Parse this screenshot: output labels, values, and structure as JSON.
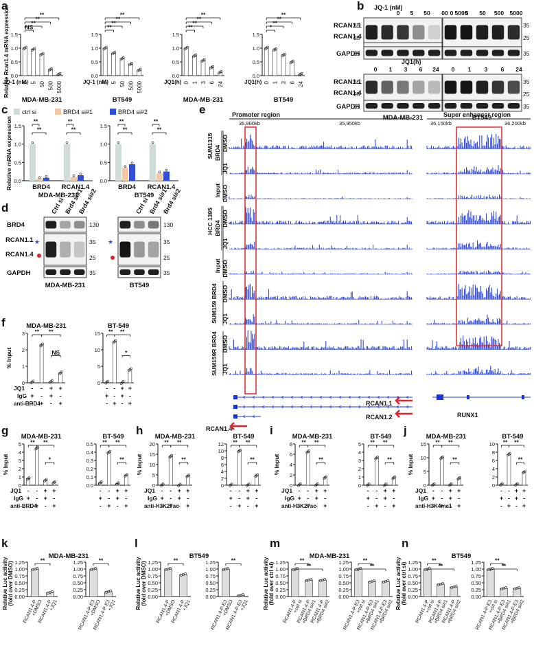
{
  "panel_letters": [
    "a",
    "b",
    "c",
    "d",
    "e",
    "f",
    "g",
    "h",
    "i",
    "j",
    "k",
    "l",
    "m",
    "n"
  ],
  "colors": {
    "ctrl": "#d0dcd8",
    "si1": "#f2c8a8",
    "si2": "#2e4fd6",
    "track": "#1a35d8",
    "highlight": "#e0242c",
    "bar_gray": "#dddddd"
  },
  "panel_a": {
    "ylabel": "Relative Rcan1.4 mRNA expression",
    "charts": [
      {
        "title": "MDA-MB-231",
        "factor": "JQ-1 (nM)",
        "categories": [
          "0",
          "5",
          "50",
          "500",
          "5000"
        ],
        "values": [
          1.0,
          0.96,
          0.78,
          0.22,
          0.05
        ],
        "yticks": [
          "0.0",
          "0.5",
          "1.0",
          "1.5"
        ],
        "sig": [
          "NS",
          "**",
          "**",
          "**"
        ]
      },
      {
        "title": "BT549",
        "factor": "JQ-1 (nM)",
        "categories": [
          "0",
          "5",
          "50",
          "500",
          "5000"
        ],
        "values": [
          1.0,
          0.82,
          0.62,
          0.42,
          0.2
        ],
        "yticks": [
          "0.0",
          "0.5",
          "1.0",
          "1.5"
        ],
        "sig": [
          "**",
          "**",
          "**",
          "**"
        ]
      },
      {
        "title": "MDA-MB-231",
        "factor": "JQ1(h)",
        "categories": [
          "0",
          "1",
          "3",
          "6",
          "24"
        ],
        "values": [
          1.0,
          0.72,
          0.55,
          0.3,
          0.12
        ],
        "yticks": [
          "0.0",
          "0.5",
          "1.0",
          "1.5"
        ],
        "sig": [
          "**",
          "**",
          "**",
          "**"
        ]
      },
      {
        "title": "BT549",
        "factor": "JQ1(h)",
        "categories": [
          "0",
          "1",
          "3",
          "6",
          "24"
        ],
        "values": [
          1.0,
          0.95,
          0.75,
          0.5,
          0.05
        ],
        "yticks": [
          "0.0",
          "0.5",
          "1.0",
          "1.5"
        ],
        "sig": [
          "*",
          "**",
          "**",
          "**"
        ]
      }
    ]
  },
  "panel_b": {
    "row1_factor": "JQ-1 (nM)",
    "row1_doses": [
      "0",
      "5",
      "50",
      "500",
      "5000"
    ],
    "row1_doses_b": [
      "0",
      "5",
      "50",
      "500",
      "5000"
    ],
    "row1_dose_short": "00",
    "row2_factor": "JQ1(h)",
    "row2_times": [
      "0",
      "1",
      "3",
      "6",
      "24"
    ],
    "bands": [
      "RCAN1.1",
      "RCAN1.4",
      "GAPDH"
    ],
    "mw": [
      "35",
      "25",
      "35"
    ],
    "cells": [
      "MDA-MB-231",
      "BT549"
    ]
  },
  "panel_c": {
    "legend": [
      "ctrl si",
      "BRD4 si#1",
      "BRD4 si#2"
    ],
    "ylabel": "Relative mRNA expression",
    "yticks": [
      "0.0",
      "0.5",
      "1.0",
      "1.5"
    ],
    "charts": [
      {
        "title": "MDA-MB-231",
        "categories": [
          "BRD4",
          "RCAN1.4"
        ],
        "series": [
          [
            1.0,
            1.0
          ],
          [
            0.05,
            0.1
          ],
          [
            0.08,
            0.15
          ]
        ]
      },
      {
        "title": "BT549",
        "categories": [
          "BRD4",
          "RCAN1.4"
        ],
        "series": [
          [
            1.0,
            1.0
          ],
          [
            0.35,
            0.2
          ],
          [
            0.45,
            0.25
          ]
        ]
      }
    ],
    "sig": "**"
  },
  "panel_d": {
    "lanes": [
      "Ctrl si",
      "Brd4 si#1",
      "Brd4 si#2"
    ],
    "bands": [
      "BRD4",
      "RCAN1.1",
      "RCAN1.4",
      "GAPDH"
    ],
    "mw": [
      "130",
      "35",
      "25",
      "35"
    ],
    "cells": [
      "MDA-MB-231",
      "BT549"
    ]
  },
  "panel_e": {
    "promoter": "Promoter region",
    "enhancer": "Super enhancer region",
    "coords_left": [
      "35,900kb",
      "35,950kb"
    ],
    "coords_right": [
      "36,150kb",
      "36,200kb"
    ],
    "groups": [
      {
        "cell": "SUM1315",
        "sub": [
          "BRD4",
          "Input"
        ],
        "tracks": [
          "DMSO",
          "JQ1",
          "DMSO"
        ]
      },
      {
        "cell": "HCC 1395",
        "sub": [
          "BRD4",
          "Input"
        ],
        "tracks": [
          "DMSO",
          "JQ1",
          "DMSO"
        ]
      },
      {
        "cell": "SUM159 BRD4",
        "sub": [],
        "tracks": [
          "DMSO",
          "JQ1"
        ]
      },
      {
        "cell": "SUM159R BRD4",
        "sub": [],
        "tracks": [
          "DMSO",
          "JQ1"
        ]
      }
    ],
    "genes": [
      "RCAN1.1",
      "RCAN1.2",
      "RCAN1.4",
      "RUNX1"
    ]
  },
  "chip": {
    "ylabel": "% Input",
    "row_jq1": "JQ1",
    "row_igg": "IgG",
    "jq1_marks": [
      "-",
      "-",
      "+",
      "+"
    ],
    "igg_marks": [
      "+",
      "-",
      "+",
      "-"
    ],
    "panels": [
      {
        "id": "f",
        "ab": "anti-BRD4",
        "cells": [
          {
            "title": "MDA-MB-231",
            "yticks": [
              "0",
              "1",
              "2",
              "3"
            ],
            "values": [
              0.05,
              2.3,
              0.08,
              0.6
            ],
            "sig": [
              "**",
              "**",
              "NS"
            ]
          },
          {
            "title": "BT-549",
            "yticks": [
              "0",
              "5",
              "10",
              "15"
            ],
            "values": [
              0.2,
              12.5,
              0.1,
              4.0
            ],
            "sig": [
              "**",
              "**",
              "*"
            ]
          }
        ]
      },
      {
        "id": "g",
        "ab": "anti-BRD4",
        "cells": [
          {
            "title": "MDA-MB-231",
            "yticks": [
              "0",
              "1",
              "2",
              "3",
              "4",
              "5"
            ],
            "values": [
              0.8,
              4.5,
              0.6,
              0.35
            ],
            "sig": [
              "**",
              "**",
              "*"
            ]
          },
          {
            "title": "BT-549",
            "yticks": [
              "0.0",
              "0.1",
              "0.2",
              "0.3",
              "0.4",
              "0.5"
            ],
            "values": [
              0.03,
              0.4,
              0.02,
              0.12
            ],
            "sig": [
              "**",
              "**",
              "**"
            ]
          }
        ]
      },
      {
        "id": "h",
        "ab": "anti-H3K27ac",
        "cells": [
          {
            "title": "MDA-MB-231",
            "yticks": [
              "0",
              "5",
              "10",
              "15",
              "20"
            ],
            "values": [
              0.2,
              14.0,
              0.1,
              4.5
            ],
            "sig": [
              "**",
              "**",
              "**"
            ]
          },
          {
            "title": "BT-549",
            "yticks": [
              "0",
              "2",
              "4",
              "6",
              "8",
              "10",
              "12"
            ],
            "values": [
              0.1,
              10.0,
              0.1,
              2.8
            ],
            "sig": [
              "**",
              "**",
              "**"
            ]
          }
        ]
      },
      {
        "id": "i",
        "ab": "anti-H3K27ac",
        "cells": [
          {
            "title": "MDA-MB-231",
            "yticks": [
              "0",
              "2",
              "4",
              "6",
              "8"
            ],
            "values": [
              0.1,
              6.5,
              0.1,
              1.5
            ],
            "sig": [
              "**",
              "**",
              "**"
            ]
          },
          {
            "title": "BT-549",
            "yticks": [
              "0",
              "1",
              "2",
              "3",
              "4",
              "5"
            ],
            "values": [
              0.05,
              3.3,
              0.05,
              0.9
            ],
            "sig": [
              "**",
              "**",
              "**"
            ]
          }
        ]
      },
      {
        "id": "j",
        "ab": "anti-H3K4me1",
        "cells": [
          {
            "title": "MDA-MB-231",
            "yticks": [
              "0",
              "5",
              "10",
              "15"
            ],
            "values": [
              0.2,
              10.0,
              0.2,
              2.5
            ],
            "sig": [
              "**",
              "**",
              "**"
            ]
          },
          {
            "title": "BT-549",
            "yticks": [
              "0",
              "2",
              "4",
              "6",
              "8",
              "10"
            ],
            "values": [
              0.2,
              7.5,
              0.2,
              3.2
            ],
            "sig": [
              "**",
              "**",
              "**"
            ]
          }
        ]
      }
    ]
  },
  "luc": {
    "ylabel": "Relative Luc activity",
    "panels": [
      {
        "id": "k",
        "title": "MDA-MB-231",
        "sub": "(fold over DMSO)",
        "groups": [
          {
            "labels": [
              "RCAN1.4-P\n+DMSO",
              "RCAN1.4-P\n+JQ1"
            ],
            "values": [
              1.0,
              0.15
            ]
          },
          {
            "labels": [
              "RCAN1.4-P-E3\n+DMSO",
              "RCAN1.4-P-E3\n+JQ1"
            ],
            "values": [
              1.0,
              0.18
            ]
          }
        ]
      },
      {
        "id": "l",
        "title": "BT549",
        "sub": "(fold over DMSO)",
        "groups": [
          {
            "labels": [
              "RCAN1.4-P\n+DMSO",
              "RCAN1.4-P\n+JQ1"
            ],
            "values": [
              1.0,
              0.8
            ]
          },
          {
            "labels": [
              "RCAN1.4-P-E3\n+DMSO",
              "RCAN1.4-P-E3\n+JQ1"
            ],
            "values": [
              1.0,
              0.05
            ]
          }
        ]
      },
      {
        "id": "m",
        "title": "MDA-MB-231",
        "sub": "(fold over ctrl si)",
        "groups": [
          {
            "labels": [
              "RCAN1.4-P\n+ctrl si",
              "RCAN1.4-P\n+BRD4 si#1",
              "RCAN1.4-P\n+BRD4 si#2"
            ],
            "values": [
              1.0,
              0.6,
              0.6
            ]
          },
          {
            "labels": [
              "RCAN1.4-P-E3\n+ctrl si",
              "RCAN1.4-P-E3\n+BRD4 si#1",
              "RCAN1.4-P-E3\n+BRD4 si#2"
            ],
            "values": [
              1.0,
              0.55,
              0.55
            ]
          }
        ]
      },
      {
        "id": "n",
        "title": "BT549",
        "sub": "(fold over ctrl si)",
        "groups": [
          {
            "labels": [
              "RCAN1.4-P\n+ctrl si",
              "RCAN1.4-P\n+BRD4 si#1",
              "RCAN1.4-P\n+BRD4 si#2"
            ],
            "values": [
              1.0,
              0.45,
              0.35
            ]
          },
          {
            "labels": [
              "RCAN1.4-P-E3\n+ctrl si",
              "RCAN1.4-P-E3\n+BRD4 si#1",
              "RCAN1.4-P-E3\n+BRD4 si#2"
            ],
            "values": [
              1.0,
              0.3,
              0.3
            ]
          }
        ]
      }
    ],
    "yticks": [
      "0.00",
      "0.25",
      "0.50",
      "0.75",
      "1.00",
      "1.25"
    ],
    "sig": "**"
  }
}
